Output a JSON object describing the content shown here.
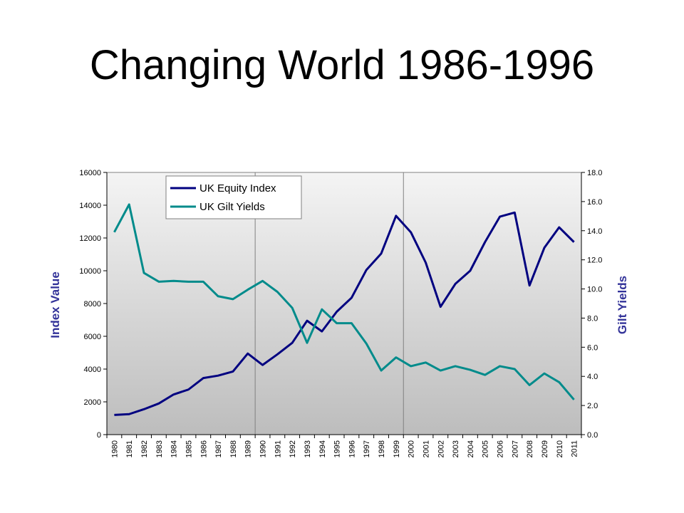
{
  "slide": {
    "title": "Changing World 1986-1996"
  },
  "chart_data": {
    "type": "line",
    "categories": [
      "1980",
      "1981",
      "1982",
      "1983",
      "1984",
      "1985",
      "1986",
      "1987",
      "1988",
      "1989",
      "1990",
      "1991",
      "1992",
      "1993",
      "1994",
      "1995",
      "1996",
      "1997",
      "1998",
      "1999",
      "2000",
      "2001",
      "2002",
      "2003",
      "2004",
      "2005",
      "2006",
      "2007",
      "2008",
      "2009",
      "2010",
      "2011"
    ],
    "series": [
      {
        "name": "UK Equity Index",
        "axis": "left",
        "color": "#000080",
        "values": [
          1200,
          1250,
          1550,
          1900,
          2450,
          2750,
          3450,
          3600,
          3850,
          4950,
          4250,
          4900,
          5600,
          6950,
          6300,
          7500,
          8350,
          10050,
          11050,
          13350,
          12350,
          10500,
          7800,
          9200,
          10000,
          11750,
          13300,
          13550,
          9100,
          11400,
          12650,
          11750
        ]
      },
      {
        "name": "UK Gilt Yields",
        "axis": "right",
        "color": "#008B8B",
        "values": [
          13.9,
          15.8,
          11.1,
          10.5,
          10.55,
          10.5,
          10.5,
          9.5,
          9.3,
          9.95,
          10.55,
          9.8,
          8.7,
          6.3,
          8.6,
          7.65,
          7.65,
          6.25,
          4.4,
          5.3,
          4.7,
          4.95,
          4.4,
          4.7,
          4.45,
          4.1,
          4.7,
          4.5,
          3.4,
          4.2,
          3.6,
          2.4
        ]
      }
    ],
    "ylabel": "Index Value",
    "ylim": [
      0,
      16000
    ],
    "yticks": [
      "0",
      "2000",
      "4000",
      "6000",
      "8000",
      "10000",
      "12000",
      "14000",
      "16000"
    ],
    "y2label": "Gilt Yields",
    "y2lim": [
      0,
      18
    ],
    "y2ticks": [
      "0.0",
      "2.0",
      "4.0",
      "6.0",
      "8.0",
      "10.0",
      "12.0",
      "14.0",
      "16.0",
      "18.0"
    ],
    "grid": "vertical",
    "legend_position": "top-left",
    "plot_background": "gradient-gray"
  }
}
